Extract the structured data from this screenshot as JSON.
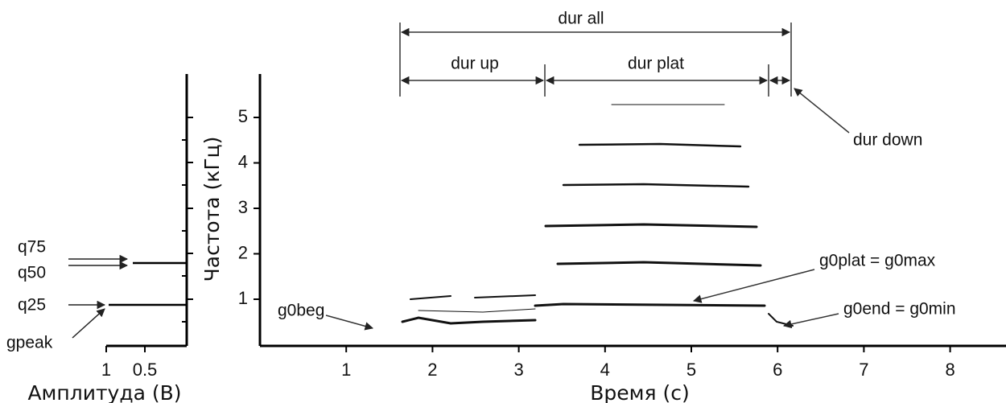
{
  "spectrogram": {
    "x_axis": {
      "label": "Время (с)",
      "ticks": [
        1,
        2,
        3,
        4,
        5,
        6,
        7,
        8
      ]
    },
    "y_axis": {
      "label": "Частота (кГц)",
      "ticks": [
        1,
        2,
        3,
        4,
        5
      ]
    }
  },
  "amplitude": {
    "x_axis": {
      "label": "Амплитуда (В)",
      "ticks": [
        1,
        0.5
      ]
    }
  },
  "annotations": {
    "dur_all": "dur all",
    "dur_up": "dur  up",
    "dur_plat": "dur  plat",
    "dur_down": "dur  down",
    "g0beg": "g0beg",
    "g0plat": "g0plat = g0max",
    "g0end": "g0end = g0min",
    "q75": "q75",
    "q50": "q50",
    "q25": "q25",
    "gpeak": "gpeak"
  }
}
